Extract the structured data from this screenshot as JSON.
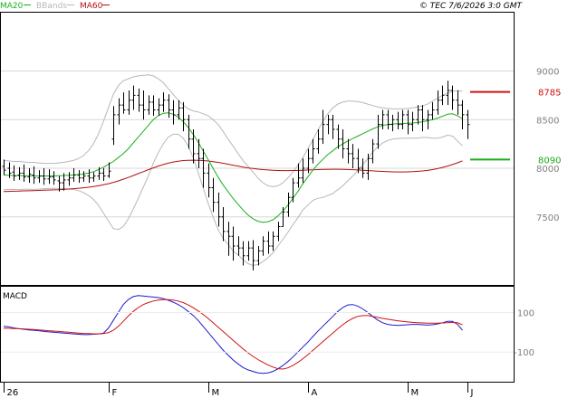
{
  "legend": {
    "ma20": {
      "label": "MA20",
      "color": "#1aae1a"
    },
    "bbands": {
      "label": "BBands",
      "color": "#b8b8b8"
    },
    "ma60": {
      "label": "MA60",
      "color": "#b01010"
    }
  },
  "copyright": "© TEC 7/6/2026 3:0 GMT",
  "macd_panel": {
    "title": "MACD",
    "ticks": [
      "100",
      "-100"
    ]
  },
  "chart_data": [
    {
      "type": "ohlc",
      "panel": "price",
      "x_ticks": [
        "26",
        "F",
        "M",
        "A",
        "M",
        "J"
      ],
      "y_ticks": [
        "9000",
        "8500",
        "8000",
        "7500"
      ],
      "ylim": [
        6800,
        9600
      ],
      "grid": true,
      "bars": [
        [
          8020,
          7980,
          8090,
          7930
        ],
        [
          8000,
          7950,
          8060,
          7900
        ],
        [
          7960,
          7920,
          8030,
          7870
        ],
        [
          7930,
          7950,
          8010,
          7880
        ],
        [
          7950,
          7910,
          8040,
          7860
        ],
        [
          7910,
          7940,
          8000,
          7850
        ],
        [
          7930,
          7900,
          8020,
          7840
        ],
        [
          7900,
          7920,
          7980,
          7850
        ],
        [
          7920,
          7890,
          8000,
          7830
        ],
        [
          7890,
          7910,
          7990,
          7840
        ],
        [
          7910,
          7880,
          7970,
          7830
        ],
        [
          7870,
          7850,
          7920,
          7760
        ],
        [
          7850,
          7880,
          7950,
          7770
        ],
        [
          7880,
          7900,
          7960,
          7820
        ],
        [
          7900,
          7930,
          8000,
          7860
        ],
        [
          7930,
          7900,
          7980,
          7850
        ],
        [
          7900,
          7920,
          7970,
          7860
        ],
        [
          7920,
          7900,
          7990,
          7850
        ],
        [
          7900,
          7920,
          7960,
          7860
        ],
        [
          7920,
          7950,
          8010,
          7880
        ],
        [
          7950,
          7920,
          8000,
          7870
        ],
        [
          7920,
          7970,
          8060,
          7900
        ],
        [
          8300,
          8550,
          8640,
          8240
        ],
        [
          8550,
          8650,
          8720,
          8450
        ],
        [
          8650,
          8600,
          8780,
          8560
        ],
        [
          8600,
          8700,
          8800,
          8550
        ],
        [
          8700,
          8750,
          8850,
          8600
        ],
        [
          8750,
          8650,
          8820,
          8580
        ],
        [
          8650,
          8600,
          8800,
          8500
        ],
        [
          8600,
          8680,
          8750,
          8550
        ],
        [
          8680,
          8600,
          8750,
          8540
        ],
        [
          8600,
          8650,
          8720,
          8540
        ],
        [
          8650,
          8700,
          8780,
          8580
        ],
        [
          8700,
          8600,
          8760,
          8520
        ],
        [
          8600,
          8550,
          8700,
          8450
        ],
        [
          8550,
          8620,
          8700,
          8500
        ],
        [
          8620,
          8500,
          8680,
          8380
        ],
        [
          8500,
          8300,
          8550,
          8200
        ],
        [
          8300,
          8150,
          8400,
          8050
        ],
        [
          8150,
          8100,
          8300,
          8000
        ],
        [
          8100,
          7950,
          8200,
          7800
        ],
        [
          7950,
          7800,
          8050,
          7700
        ],
        [
          7800,
          7650,
          7900,
          7550
        ],
        [
          7650,
          7500,
          7750,
          7400
        ],
        [
          7500,
          7350,
          7600,
          7250
        ],
        [
          7350,
          7300,
          7450,
          7100
        ],
        [
          7300,
          7200,
          7400,
          7050
        ],
        [
          7200,
          7180,
          7300,
          7100
        ],
        [
          7180,
          7100,
          7250,
          7000
        ],
        [
          7100,
          7180,
          7250,
          7050
        ],
        [
          7180,
          7050,
          7260,
          6950
        ],
        [
          7050,
          7150,
          7200,
          7000
        ],
        [
          7150,
          7250,
          7300,
          7100
        ],
        [
          7250,
          7200,
          7350,
          7120
        ],
        [
          7200,
          7300,
          7350,
          7150
        ],
        [
          7300,
          7400,
          7450,
          7250
        ],
        [
          7400,
          7550,
          7600,
          7400
        ],
        [
          7550,
          7700,
          7750,
          7500
        ],
        [
          7700,
          7850,
          7900,
          7650
        ],
        [
          7850,
          7900,
          8050,
          7800
        ],
        [
          7900,
          8000,
          8100,
          7850
        ],
        [
          8000,
          8100,
          8200,
          7950
        ],
        [
          8100,
          8200,
          8300,
          8050
        ],
        [
          8200,
          8300,
          8400,
          8150
        ],
        [
          8300,
          8450,
          8600,
          8250
        ],
        [
          8450,
          8500,
          8550,
          8350
        ],
        [
          8500,
          8400,
          8550,
          8300
        ],
        [
          8400,
          8300,
          8450,
          8200
        ],
        [
          8300,
          8200,
          8400,
          8100
        ],
        [
          8200,
          8150,
          8300,
          8050
        ],
        [
          8150,
          8100,
          8250,
          8000
        ],
        [
          8100,
          8000,
          8200,
          7950
        ],
        [
          8000,
          7950,
          8100,
          7900
        ],
        [
          7950,
          8100,
          8150,
          7880
        ],
        [
          8100,
          8250,
          8300,
          8050
        ],
        [
          8250,
          8450,
          8550,
          8200
        ],
        [
          8450,
          8550,
          8600,
          8400
        ],
        [
          8550,
          8450,
          8600,
          8400
        ],
        [
          8450,
          8500,
          8550,
          8380
        ],
        [
          8500,
          8450,
          8580,
          8400
        ],
        [
          8450,
          8550,
          8600,
          8400
        ],
        [
          8550,
          8450,
          8600,
          8350
        ],
        [
          8450,
          8500,
          8580,
          8380
        ],
        [
          8500,
          8600,
          8650,
          8450
        ],
        [
          8600,
          8500,
          8650,
          8380
        ],
        [
          8500,
          8550,
          8600,
          8400
        ],
        [
          8550,
          8600,
          8680,
          8500
        ],
        [
          8600,
          8700,
          8800,
          8550
        ],
        [
          8700,
          8750,
          8850,
          8650
        ],
        [
          8750,
          8800,
          8900,
          8650
        ],
        [
          8800,
          8700,
          8850,
          8600
        ],
        [
          8700,
          8650,
          8800,
          8550
        ],
        [
          8650,
          8550,
          8700,
          8400
        ],
        [
          8550,
          8450,
          8600,
          8300
        ]
      ],
      "series": [
        {
          "name": "MA20",
          "color": "#1aae1a",
          "values": [
            7930,
            7928,
            7926,
            7925,
            7924,
            7922,
            7921,
            7920,
            7920,
            7921,
            7922,
            7923,
            7925,
            7928,
            7931,
            7935,
            7940,
            7950,
            7965,
            7985,
            8010,
            8040,
            8070,
            8110,
            8150,
            8200,
            8260,
            8320,
            8380,
            8440,
            8500,
            8540,
            8565,
            8570,
            8555,
            8525,
            8480,
            8420,
            8350,
            8270,
            8180,
            8090,
            8000,
            7910,
            7830,
            7760,
            7690,
            7630,
            7570,
            7520,
            7480,
            7455,
            7445,
            7450,
            7470,
            7510,
            7560,
            7620,
            7690,
            7760,
            7840,
            7910,
            7980,
            8040,
            8090,
            8140,
            8180,
            8220,
            8250,
            8280,
            8305,
            8330,
            8355,
            8380,
            8405,
            8425,
            8440,
            8450,
            8455,
            8458,
            8460,
            8462,
            8465,
            8470,
            8478,
            8488,
            8500,
            8515,
            8535,
            8555,
            8560,
            8540,
            8510
          ]
        },
        {
          "name": "BBands",
          "color": "#b8b8b8",
          "values": [
            8080,
            8075,
            8070,
            8070,
            8065,
            8060,
            8060,
            8055,
            8050,
            8050,
            8050,
            8055,
            8060,
            8070,
            8080,
            8100,
            8130,
            8180,
            8250,
            8350,
            8480,
            8620,
            8760,
            8850,
            8900,
            8920,
            8940,
            8950,
            8955,
            8960,
            8950,
            8920,
            8880,
            8820,
            8760,
            8700,
            8650,
            8610,
            8590,
            8580,
            8560,
            8540,
            8500,
            8450,
            8380,
            8300,
            8230,
            8150,
            8080,
            8020,
            7960,
            7900,
            7850,
            7820,
            7810,
            7820,
            7850,
            7900,
            7960,
            8030,
            8110,
            8200,
            8290,
            8390,
            8480,
            8560,
            8620,
            8660,
            8680,
            8690,
            8690,
            8685,
            8675,
            8660,
            8645,
            8630,
            8620,
            8615,
            8610,
            8610,
            8612,
            8615,
            8620,
            8630,
            8640,
            8660,
            8690,
            8720,
            8750,
            8770,
            8790,
            8800,
            8790
          ]
        },
        {
          "name": "BBands",
          "color": "#b8b8b8",
          "values": [
            7780,
            7781,
            7782,
            7780,
            7783,
            7784,
            7782,
            7785,
            7790,
            7792,
            7794,
            7791,
            7790,
            7786,
            7782,
            7770,
            7750,
            7720,
            7680,
            7620,
            7540,
            7460,
            7380,
            7370,
            7400,
            7480,
            7580,
            7690,
            7805,
            7920,
            8050,
            8160,
            8250,
            8320,
            8350,
            8350,
            8310,
            8230,
            8110,
            7960,
            7800,
            7640,
            7500,
            7370,
            7280,
            7220,
            7150,
            7110,
            7060,
            7020,
            7000,
            7010,
            7040,
            7080,
            7130,
            7200,
            7270,
            7340,
            7420,
            7490,
            7570,
            7620,
            7670,
            7690,
            7700,
            7720,
            7740,
            7780,
            7820,
            7870,
            7920,
            7975,
            8035,
            8100,
            8165,
            8220,
            8260,
            8285,
            8300,
            8306,
            8308,
            8309,
            8310,
            8310,
            8316,
            8316,
            8310,
            8310,
            8320,
            8340,
            8330,
            8280,
            8230
          ]
        },
        {
          "name": "MA60",
          "color": "#b01010",
          "values": [
            7760,
            7762,
            7764,
            7765,
            7767,
            7768,
            7770,
            7772,
            7774,
            7776,
            7778,
            7780,
            7783,
            7786,
            7790,
            7794,
            7799,
            7805,
            7812,
            7820,
            7830,
            7841,
            7855,
            7870,
            7887,
            7905,
            7925,
            7945,
            7965,
            7985,
            8004,
            8022,
            8038,
            8052,
            8064,
            8073,
            8079,
            8082,
            8083,
            8082,
            8079,
            8074,
            8068,
            8060,
            8051,
            8042,
            8032,
            8022,
            8012,
            8004,
            7997,
            7991,
            7986,
            7982,
            7979,
            7977,
            7976,
            7976,
            7977,
            7978,
            7980,
            7982,
            7984,
            7986,
            7988,
            7989,
            7990,
            7990,
            7989,
            7987,
            7985,
            7982,
            7979,
            7976,
            7973,
            7970,
            7967,
            7965,
            7963,
            7962,
            7962,
            7963,
            7965,
            7968,
            7972,
            7978,
            7986,
            7996,
            8008,
            8022,
            8038,
            8056,
            8076
          ]
        }
      ],
      "price_labels": [
        {
          "value": 8785,
          "label": "8785",
          "color": "#d01010"
        },
        {
          "value": 8090,
          "label": "8090",
          "color": "#1aae1a"
        }
      ]
    },
    {
      "type": "line",
      "panel": "macd",
      "ylim": [
        -250,
        230
      ],
      "series": [
        {
          "name": "MACD",
          "color": "#1a1ad0",
          "values": [
            30,
            28,
            22,
            18,
            15,
            12,
            10,
            8,
            5,
            2,
            0,
            -2,
            -4,
            -6,
            -8,
            -10,
            -12,
            -12,
            -10,
            -8,
            -5,
            20,
            60,
            100,
            140,
            165,
            180,
            185,
            183,
            180,
            178,
            175,
            170,
            162,
            152,
            140,
            125,
            105,
            85,
            60,
            30,
            0,
            -30,
            -60,
            -90,
            -115,
            -140,
            -160,
            -178,
            -190,
            -198,
            -205,
            -208,
            -205,
            -198,
            -185,
            -168,
            -148,
            -125,
            -100,
            -75,
            -50,
            -22,
            5,
            30,
            55,
            80,
            105,
            125,
            138,
            140,
            132,
            118,
            100,
            80,
            62,
            48,
            40,
            36,
            35,
            36,
            38,
            40,
            40,
            38,
            36,
            38,
            42,
            48,
            55,
            55,
            40,
            10
          ]
        },
        {
          "name": "Signal",
          "color": "#d01010",
          "values": [
            20,
            20,
            19,
            18,
            17,
            15,
            14,
            12,
            10,
            8,
            6,
            4,
            2,
            0,
            -2,
            -4,
            -6,
            -7,
            -8,
            -8,
            -7,
            -2,
            10,
            30,
            55,
            82,
            105,
            125,
            140,
            150,
            158,
            163,
            165,
            165,
            163,
            158,
            150,
            138,
            124,
            108,
            90,
            70,
            48,
            26,
            4,
            -18,
            -40,
            -62,
            -84,
            -104,
            -122,
            -138,
            -152,
            -165,
            -176,
            -184,
            -186,
            -180,
            -168,
            -152,
            -134,
            -114,
            -92,
            -70,
            -48,
            -26,
            -4,
            18,
            38,
            56,
            70,
            80,
            84,
            84,
            80,
            75,
            70,
            66,
            62,
            58,
            55,
            52,
            50,
            48,
            47,
            46,
            46,
            46,
            47,
            48,
            50,
            48,
            38
          ]
        }
      ]
    }
  ]
}
